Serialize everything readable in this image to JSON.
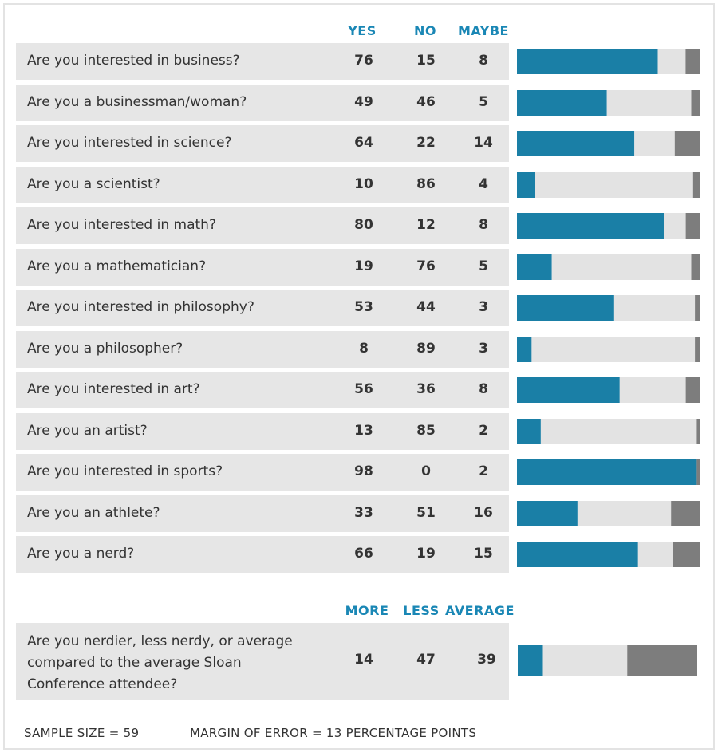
{
  "colors": {
    "yes": "#1a7fa6",
    "no": "#e3e3e3",
    "maybe": "#7d7d7d",
    "header": "#1a87b5",
    "row_bg": "#e6e6e6"
  },
  "headers": {
    "yes": "YES",
    "no": "NO",
    "maybe": "MAYBE"
  },
  "headers2": {
    "more": "MORE",
    "less": "LESS",
    "average": "AVERAGE"
  },
  "footer": {
    "sample": "SAMPLE SIZE = 59",
    "margin": "MARGIN OF ERROR = 13 PERCENTAGE POINTS"
  },
  "chart_data": [
    {
      "type": "bar",
      "stacked": true,
      "orientation": "horizontal",
      "categories": [
        "Are you interested in business?",
        "Are you a businessman/woman?",
        "Are you interested in science?",
        "Are you a scientist?",
        "Are you interested in math?",
        "Are you a mathematician?",
        "Are you interested in philosophy?",
        "Are you a philosopher?",
        "Are you interested in art?",
        "Are you an artist?",
        "Are you interested in sports?",
        "Are you an athlete?",
        "Are you a nerd?"
      ],
      "series": [
        {
          "name": "YES",
          "values": [
            76,
            49,
            64,
            10,
            80,
            19,
            53,
            8,
            56,
            13,
            98,
            33,
            66
          ]
        },
        {
          "name": "NO",
          "values": [
            15,
            46,
            22,
            86,
            12,
            76,
            44,
            89,
            36,
            85,
            0,
            51,
            19
          ]
        },
        {
          "name": "MAYBE",
          "values": [
            8,
            5,
            14,
            4,
            8,
            5,
            3,
            3,
            8,
            2,
            2,
            16,
            15
          ]
        }
      ]
    },
    {
      "type": "bar",
      "stacked": true,
      "orientation": "horizontal",
      "categories": [
        "Are you nerdier, less nerdy, or average compared to the average Sloan Conference attendee?"
      ],
      "question_lines": [
        "Are you nerdier, less nerdy, or average",
        "compared to the average Sloan",
        "Conference attendee?"
      ],
      "series": [
        {
          "name": "MORE",
          "values": [
            14
          ]
        },
        {
          "name": "LESS",
          "values": [
            47
          ]
        },
        {
          "name": "AVERAGE",
          "values": [
            39
          ]
        }
      ]
    }
  ]
}
